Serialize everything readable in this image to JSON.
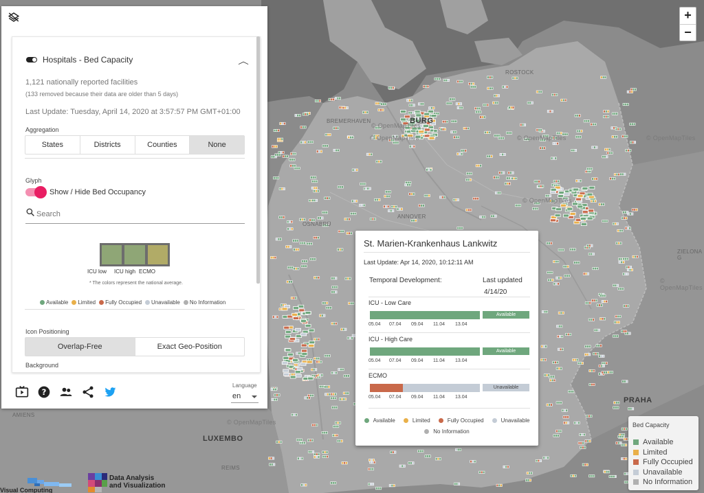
{
  "map": {
    "zoom_in": "+",
    "zoom_out": "−",
    "labels": [
      {
        "text": "BURG",
        "cls": "city"
      },
      {
        "text": "BREMERHAVEN",
        "cls": ""
      },
      {
        "text": "ROSTOCK",
        "cls": ""
      },
      {
        "text": "PRAHA",
        "cls": "city"
      },
      {
        "text": "LUXEMBO",
        "cls": "city"
      },
      {
        "text": "AMIENS",
        "cls": ""
      },
      {
        "text": "REIMS",
        "cls": ""
      },
      {
        "text": "ZIELONA G",
        "cls": ""
      },
      {
        "text": "ANNOVER",
        "cls": ""
      },
      {
        "text": "OSNABRÜ",
        "cls": ""
      },
      {
        "text": "© OpenMapTiles",
        "cls": "omt"
      }
    ]
  },
  "panel": {
    "layer_title": "Hospitals - Bed Capacity",
    "facilities": "1,121 nationally reported facilities",
    "removed_note": "(133 removed because their data are older than 5 days)",
    "last_update": "Last Update: Tuesday, April 14, 2020 at 3:57:57 PM GMT+01:00",
    "aggregation_label": "Aggregation",
    "aggregation": [
      "States",
      "Districts",
      "Counties",
      "None"
    ],
    "aggregation_active": 3,
    "glyph_label": "Glyph",
    "glyph_toggle_label": "Show / Hide Bed Occupancy",
    "search_placeholder": "Search",
    "glyph_labels": [
      "ICU low",
      "ICU high",
      "ECMO"
    ],
    "glyph_colors": [
      "#8fa676",
      "#8fa676",
      "#b1ab67"
    ],
    "glyph_note": "* The colors represent the national average.",
    "legend": [
      {
        "label": "Available",
        "color": "#6fa77d"
      },
      {
        "label": "Limited",
        "color": "#e9b04a"
      },
      {
        "label": "Fully Occupied",
        "color": "#c9694a"
      },
      {
        "label": "Unavailable",
        "color": "#c4ccd6"
      },
      {
        "label": "No Information",
        "color": "#b0b0b0"
      }
    ],
    "icon_positioning_label": "Icon Positioning",
    "icon_positioning": [
      "Overlap-Free",
      "Exact Geo-Position"
    ],
    "icon_positioning_active": 0,
    "background_label": "Background",
    "language_label": "Language",
    "language_value": "en"
  },
  "popup": {
    "title": "St. Marien-Krankenhaus Lankwitz",
    "last_update": "Last Update: Apr 14, 2020, 10:12:11 AM",
    "temporal_header": "Temporal Development:",
    "last_updated_header": "Last updated",
    "last_updated_date": "4/14/20",
    "ticks": [
      "05.04",
      "07.04",
      "09.04",
      "11.04",
      "13.04"
    ],
    "rows": [
      {
        "label": "ICU - Low Care",
        "status": "Available",
        "color": "#6fa77d",
        "text_color": "#ffffff"
      },
      {
        "label": "ICU - High Care",
        "status": "Available",
        "color": "#6fa77d",
        "text_color": "#ffffff"
      },
      {
        "label": "ECMO",
        "status": "Unavailable",
        "color": "#c4ccd6",
        "text_color": "#444444"
      }
    ],
    "ecmo_fully_occupied_color": "#c9694a",
    "legend": [
      {
        "label": "Available",
        "color": "#6fa77d"
      },
      {
        "label": "Limited",
        "color": "#e9b04a"
      },
      {
        "label": "Fully Occupied",
        "color": "#c9694a"
      },
      {
        "label": "Unavailable",
        "color": "#c4ccd6"
      },
      {
        "label": "No Information",
        "color": "#b0b0b0"
      }
    ]
  },
  "bed_legend": {
    "title": "Bed Capacity",
    "items": [
      {
        "label": "Available",
        "color": "#6fa77d"
      },
      {
        "label": "Limited",
        "color": "#e9b04a"
      },
      {
        "label": "Fully Occupied",
        "color": "#c9694a"
      },
      {
        "label": "Unavailable",
        "color": "#c4ccd6"
      },
      {
        "label": "No Information",
        "color": "#b0b0b0"
      }
    ]
  },
  "logos": {
    "dav_line1": "Data Analysis",
    "dav_line2": "and Visualization",
    "vc": "Visual Computing"
  }
}
